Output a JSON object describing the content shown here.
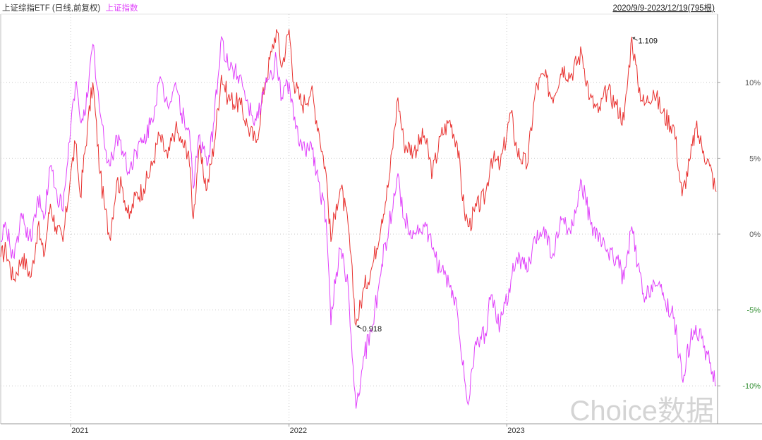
{
  "header": {
    "series1_label": "上证综指ETF (日线,前复权)",
    "series2_label": "上证指数",
    "range_label": "2020/9/9-2023/12/19(795根)"
  },
  "watermark": "Choice数据",
  "colors": {
    "etf": "#e8312f",
    "index": "#e040fb",
    "grid": "#c8c8c8",
    "axis_positive": "#555555",
    "axis_negative": "#2a8a2a",
    "watermark": "#d4d4d4"
  },
  "chart_data": {
    "type": "line",
    "x_range": [
      "2020-09-09",
      "2023-12-19"
    ],
    "x_tick_labels": [
      {
        "label": "2021",
        "date": "2021-01-04"
      },
      {
        "label": "2022",
        "date": "2022-01-04"
      },
      {
        "label": "2023",
        "date": "2023-01-03"
      }
    ],
    "y_unit": "%",
    "ylim": [
      -12.5,
      14.5
    ],
    "y_ticks": [
      {
        "value": 10,
        "label": "10%"
      },
      {
        "value": 5,
        "label": "5%"
      },
      {
        "value": 0,
        "label": "0%"
      },
      {
        "value": -5,
        "label": "-5%"
      },
      {
        "value": -10,
        "label": "-10%"
      }
    ],
    "grid": true,
    "annotations": [
      {
        "label": "1.109",
        "date": "2023-07-31",
        "value": 13.0,
        "series": "etf"
      },
      {
        "label": "0.918",
        "date": "2022-04-26",
        "value": -6.0,
        "series": "etf"
      }
    ],
    "series": [
      {
        "name": "上证综指ETF (日线,前复权)",
        "key": "etf",
        "points": [
          [
            "2020-09-09",
            -1.5
          ],
          [
            "2020-09-18",
            -1.0
          ],
          [
            "2020-09-30",
            -3.0
          ],
          [
            "2020-10-15",
            -1.5
          ],
          [
            "2020-10-30",
            -2.8
          ],
          [
            "2020-11-10",
            0.5
          ],
          [
            "2020-11-20",
            -1.5
          ],
          [
            "2020-12-01",
            2.0
          ],
          [
            "2020-12-10",
            0.5
          ],
          [
            "2020-12-22",
            -0.5
          ],
          [
            "2021-01-04",
            4.0
          ],
          [
            "2021-01-12",
            6.0
          ],
          [
            "2021-01-20",
            2.5
          ],
          [
            "2021-02-01",
            7.0
          ],
          [
            "2021-02-10",
            10.0
          ],
          [
            "2021-02-22",
            4.0
          ],
          [
            "2021-03-01",
            2.0
          ],
          [
            "2021-03-10",
            -0.2
          ],
          [
            "2021-03-22",
            3.5
          ],
          [
            "2021-04-01",
            3.0
          ],
          [
            "2021-04-12",
            1.0
          ],
          [
            "2021-04-22",
            2.5
          ],
          [
            "2021-05-06",
            3.0
          ],
          [
            "2021-05-20",
            4.5
          ],
          [
            "2021-06-01",
            6.5
          ],
          [
            "2021-06-15",
            5.0
          ],
          [
            "2021-06-28",
            7.0
          ],
          [
            "2021-07-08",
            6.0
          ],
          [
            "2021-07-20",
            5.5
          ],
          [
            "2021-07-28",
            1.0
          ],
          [
            "2021-08-06",
            5.5
          ],
          [
            "2021-08-20",
            3.0
          ],
          [
            "2021-09-01",
            6.0
          ],
          [
            "2021-09-13",
            10.5
          ],
          [
            "2021-09-24",
            9.0
          ],
          [
            "2021-10-15",
            8.5
          ],
          [
            "2021-10-28",
            7.0
          ],
          [
            "2021-11-10",
            6.0
          ],
          [
            "2021-11-25",
            10.0
          ],
          [
            "2021-12-06",
            12.0
          ],
          [
            "2021-12-14",
            13.5
          ],
          [
            "2021-12-23",
            11.0
          ],
          [
            "2022-01-04",
            13.5
          ],
          [
            "2022-01-12",
            10.0
          ],
          [
            "2022-01-26",
            8.5
          ],
          [
            "2022-02-10",
            9.5
          ],
          [
            "2022-02-22",
            7.0
          ],
          [
            "2022-03-07",
            4.0
          ],
          [
            "2022-03-15",
            -0.5
          ],
          [
            "2022-03-24",
            2.0
          ],
          [
            "2022-04-01",
            3.0
          ],
          [
            "2022-04-13",
            0.5
          ],
          [
            "2022-04-26",
            -6.0
          ],
          [
            "2022-05-10",
            -3.5
          ],
          [
            "2022-05-24",
            -2.0
          ],
          [
            "2022-06-08",
            1.0
          ],
          [
            "2022-06-20",
            3.5
          ],
          [
            "2022-07-05",
            9.0
          ],
          [
            "2022-07-15",
            6.0
          ],
          [
            "2022-08-01",
            5.5
          ],
          [
            "2022-08-18",
            6.5
          ],
          [
            "2022-09-01",
            4.0
          ],
          [
            "2022-09-15",
            6.5
          ],
          [
            "2022-09-30",
            7.5
          ],
          [
            "2022-10-12",
            6.0
          ],
          [
            "2022-10-24",
            1.5
          ],
          [
            "2022-11-01",
            0.5
          ],
          [
            "2022-11-10",
            1.5
          ],
          [
            "2022-11-28",
            2.5
          ],
          [
            "2022-12-08",
            5.0
          ],
          [
            "2022-12-23",
            4.5
          ],
          [
            "2023-01-10",
            8.0
          ],
          [
            "2023-01-20",
            5.5
          ],
          [
            "2023-02-06",
            4.5
          ],
          [
            "2023-02-20",
            9.5
          ],
          [
            "2023-03-06",
            10.5
          ],
          [
            "2023-03-20",
            9.0
          ],
          [
            "2023-04-06",
            11.0
          ],
          [
            "2023-04-20",
            10.5
          ],
          [
            "2023-05-08",
            12.0
          ],
          [
            "2023-05-22",
            9.0
          ],
          [
            "2023-06-05",
            8.0
          ],
          [
            "2023-06-20",
            9.5
          ],
          [
            "2023-07-05",
            8.5
          ],
          [
            "2023-07-18",
            7.5
          ],
          [
            "2023-07-31",
            13.0
          ],
          [
            "2023-08-10",
            10.0
          ],
          [
            "2023-08-21",
            8.5
          ],
          [
            "2023-09-05",
            9.5
          ],
          [
            "2023-09-20",
            8.0
          ],
          [
            "2023-10-10",
            7.0
          ],
          [
            "2023-10-23",
            2.5
          ],
          [
            "2023-11-06",
            5.0
          ],
          [
            "2023-11-15",
            7.0
          ],
          [
            "2023-11-28",
            5.5
          ],
          [
            "2023-12-08",
            4.5
          ],
          [
            "2023-12-19",
            2.8
          ]
        ]
      },
      {
        "name": "上证指数",
        "key": "index",
        "points": [
          [
            "2020-09-09",
            -0.5
          ],
          [
            "2020-09-18",
            0.5
          ],
          [
            "2020-09-30",
            -1.5
          ],
          [
            "2020-10-15",
            1.0
          ],
          [
            "2020-10-30",
            -0.5
          ],
          [
            "2020-11-10",
            2.5
          ],
          [
            "2020-11-20",
            1.0
          ],
          [
            "2020-12-01",
            4.5
          ],
          [
            "2020-12-10",
            3.0
          ],
          [
            "2020-12-22",
            1.5
          ],
          [
            "2021-01-04",
            7.0
          ],
          [
            "2021-01-12",
            10.0
          ],
          [
            "2021-01-20",
            7.5
          ],
          [
            "2021-02-01",
            9.0
          ],
          [
            "2021-02-10",
            12.5
          ],
          [
            "2021-02-22",
            8.0
          ],
          [
            "2021-03-01",
            6.0
          ],
          [
            "2021-03-10",
            4.5
          ],
          [
            "2021-03-22",
            6.5
          ],
          [
            "2021-04-01",
            5.5
          ],
          [
            "2021-04-12",
            4.0
          ],
          [
            "2021-04-22",
            5.5
          ],
          [
            "2021-05-06",
            6.0
          ],
          [
            "2021-05-20",
            7.5
          ],
          [
            "2021-06-01",
            10.0
          ],
          [
            "2021-06-15",
            8.5
          ],
          [
            "2021-06-28",
            10.0
          ],
          [
            "2021-07-08",
            8.0
          ],
          [
            "2021-07-20",
            7.0
          ],
          [
            "2021-07-28",
            3.0
          ],
          [
            "2021-08-06",
            6.5
          ],
          [
            "2021-08-20",
            4.5
          ],
          [
            "2021-09-01",
            7.5
          ],
          [
            "2021-09-13",
            13.0
          ],
          [
            "2021-09-24",
            11.0
          ],
          [
            "2021-10-15",
            10.5
          ],
          [
            "2021-10-28",
            8.5
          ],
          [
            "2021-11-10",
            7.5
          ],
          [
            "2021-11-25",
            9.5
          ],
          [
            "2021-12-06",
            10.5
          ],
          [
            "2021-12-14",
            11.5
          ],
          [
            "2021-12-23",
            9.0
          ],
          [
            "2022-01-04",
            10.0
          ],
          [
            "2022-01-12",
            7.5
          ],
          [
            "2022-01-26",
            5.5
          ],
          [
            "2022-02-10",
            6.0
          ],
          [
            "2022-02-22",
            3.5
          ],
          [
            "2022-03-07",
            1.0
          ],
          [
            "2022-03-15",
            -6.0
          ],
          [
            "2022-03-24",
            -2.5
          ],
          [
            "2022-04-01",
            -1.0
          ],
          [
            "2022-04-13",
            -3.5
          ],
          [
            "2022-04-26",
            -11.5
          ],
          [
            "2022-05-10",
            -8.0
          ],
          [
            "2022-05-24",
            -6.0
          ],
          [
            "2022-06-08",
            -2.0
          ],
          [
            "2022-06-20",
            0.5
          ],
          [
            "2022-07-05",
            4.0
          ],
          [
            "2022-07-15",
            1.0
          ],
          [
            "2022-08-01",
            0.0
          ],
          [
            "2022-08-18",
            0.5
          ],
          [
            "2022-09-01",
            -1.0
          ],
          [
            "2022-09-15",
            -2.5
          ],
          [
            "2022-09-30",
            -3.5
          ],
          [
            "2022-10-12",
            -5.0
          ],
          [
            "2022-10-24",
            -9.5
          ],
          [
            "2022-11-01",
            -11.0
          ],
          [
            "2022-11-10",
            -7.5
          ],
          [
            "2022-11-28",
            -6.5
          ],
          [
            "2022-12-08",
            -4.0
          ],
          [
            "2022-12-23",
            -6.0
          ],
          [
            "2023-01-10",
            -3.0
          ],
          [
            "2023-01-20",
            -1.5
          ],
          [
            "2023-02-06",
            -2.5
          ],
          [
            "2023-02-20",
            -0.5
          ],
          [
            "2023-03-06",
            0.5
          ],
          [
            "2023-03-20",
            -1.5
          ],
          [
            "2023-04-06",
            1.0
          ],
          [
            "2023-04-20",
            0.0
          ],
          [
            "2023-05-08",
            3.5
          ],
          [
            "2023-05-22",
            1.0
          ],
          [
            "2023-06-05",
            -0.5
          ],
          [
            "2023-06-20",
            -1.0
          ],
          [
            "2023-07-05",
            -1.5
          ],
          [
            "2023-07-18",
            -3.0
          ],
          [
            "2023-07-31",
            0.5
          ],
          [
            "2023-08-10",
            -2.0
          ],
          [
            "2023-08-21",
            -4.5
          ],
          [
            "2023-09-05",
            -3.0
          ],
          [
            "2023-09-20",
            -4.0
          ],
          [
            "2023-10-10",
            -5.5
          ],
          [
            "2023-10-23",
            -9.5
          ],
          [
            "2023-11-06",
            -7.0
          ],
          [
            "2023-11-15",
            -6.0
          ],
          [
            "2023-11-28",
            -7.5
          ],
          [
            "2023-12-08",
            -8.5
          ],
          [
            "2023-12-19",
            -10.0
          ]
        ]
      }
    ]
  }
}
